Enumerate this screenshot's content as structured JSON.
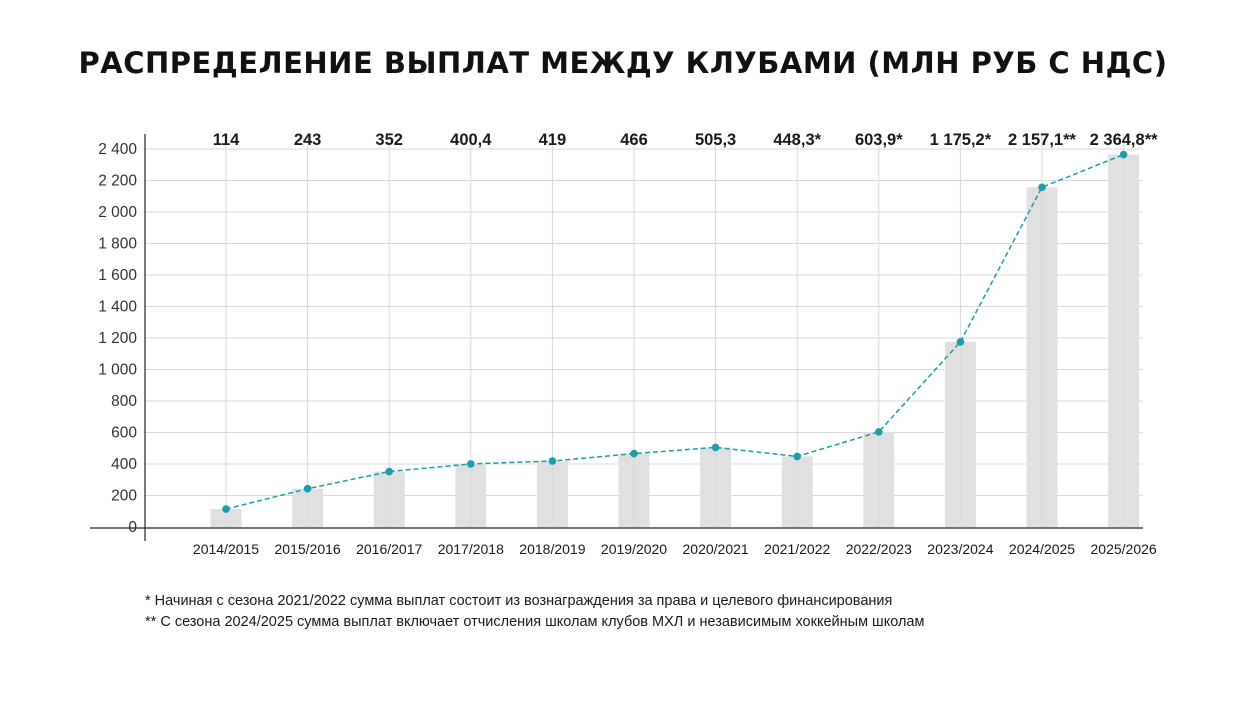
{
  "chart_data": {
    "type": "bar",
    "title": "РАСПРЕДЕЛЕНИЕ ВЫПЛАТ МЕЖДУ КЛУБАМИ (МЛН РУБ С НДС)",
    "categories": [
      "2014/2015",
      "2015/2016",
      "2016/2017",
      "2017/2018",
      "2018/2019",
      "2019/2020",
      "2020/2021",
      "2021/2022",
      "2022/2023",
      "2023/2024",
      "2024/2025",
      "2025/2026"
    ],
    "values": [
      114,
      243,
      352,
      400.4,
      419,
      466,
      505.3,
      448.3,
      603.9,
      1175.2,
      2157.1,
      2364.8
    ],
    "value_labels": [
      "114",
      "243",
      "352",
      "400,4",
      "419",
      "466",
      "505,3",
      "448,3*",
      "603,9*",
      "1 175,2*",
      "2 157,1**",
      "2 364,8**"
    ],
    "overlay_line": true,
    "ylim": [
      0,
      2400
    ],
    "yticks": [
      0,
      200,
      400,
      600,
      800,
      1000,
      1200,
      1400,
      1600,
      1800,
      2000,
      2200,
      2400
    ],
    "ytick_labels": [
      "0",
      "200",
      "400",
      "600",
      "800",
      "1 000",
      "1 200",
      "1 400",
      "1 600",
      "1 800",
      "2 000",
      "2 200",
      "2 400"
    ],
    "grid": true,
    "colors": {
      "bar": "#e0e0e0",
      "line": "#1a9eaa",
      "grid": "#d9d9d9",
      "axis": "#222222"
    }
  },
  "footnotes": [
    "* Начиная с сезона 2021/2022 сумма выплат состоит из вознаграждения за права и целевого финансирования",
    "** С сезона 2024/2025 сумма выплат включает отчисления школам клубов МХЛ и независимым хоккейным школам"
  ]
}
